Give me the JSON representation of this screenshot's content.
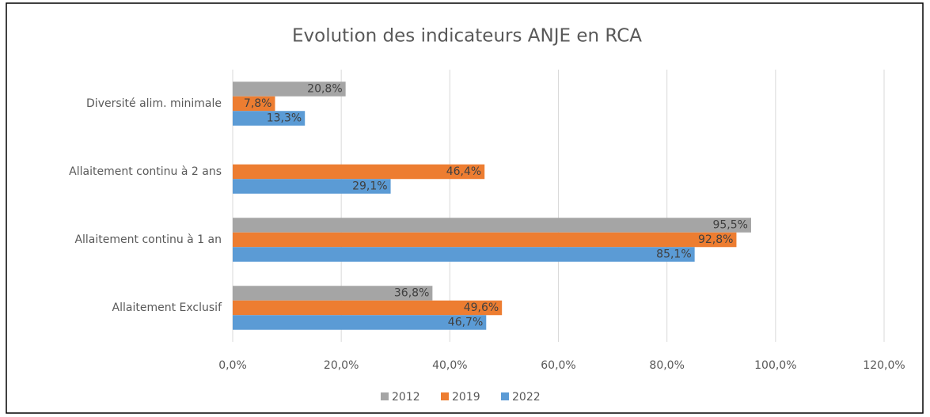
{
  "chart_data": {
    "type": "hbar",
    "title": "Evolution des indicateurs ANJE en RCA",
    "categories": [
      "Diversité alim. minimale",
      "Allaitement continu à 2 ans",
      "Allaitement continu à 1 an",
      "Allaitement Exclusif"
    ],
    "series": [
      {
        "name": "2012",
        "color": "#a5a5a5",
        "values": [
          20.8,
          null,
          95.5,
          36.8
        ],
        "value_labels": [
          "20,8%",
          null,
          "95,5%",
          "36,8%"
        ]
      },
      {
        "name": "2019",
        "color": "#ed7d31",
        "values": [
          7.8,
          46.4,
          92.8,
          49.6
        ],
        "value_labels": [
          "7,8%",
          "46,4%",
          "92,8%",
          "49,6%"
        ]
      },
      {
        "name": "2022",
        "color": "#5b9bd5",
        "values": [
          13.3,
          29.1,
          85.1,
          46.7
        ],
        "value_labels": [
          "13,3%",
          "29,1%",
          "85,1%",
          "46,7%"
        ]
      }
    ],
    "xlim": [
      0,
      120
    ],
    "xticks": [
      {
        "value": 0,
        "label": "0,0%"
      },
      {
        "value": 20,
        "label": "20,0%"
      },
      {
        "value": 40,
        "label": "40,0%"
      },
      {
        "value": 60,
        "label": "60,0%"
      },
      {
        "value": 80,
        "label": "80,0%"
      },
      {
        "value": 100,
        "label": "100,0%"
      },
      {
        "value": 120,
        "label": "120,0%"
      }
    ],
    "grid": true,
    "legend": "bottom"
  }
}
